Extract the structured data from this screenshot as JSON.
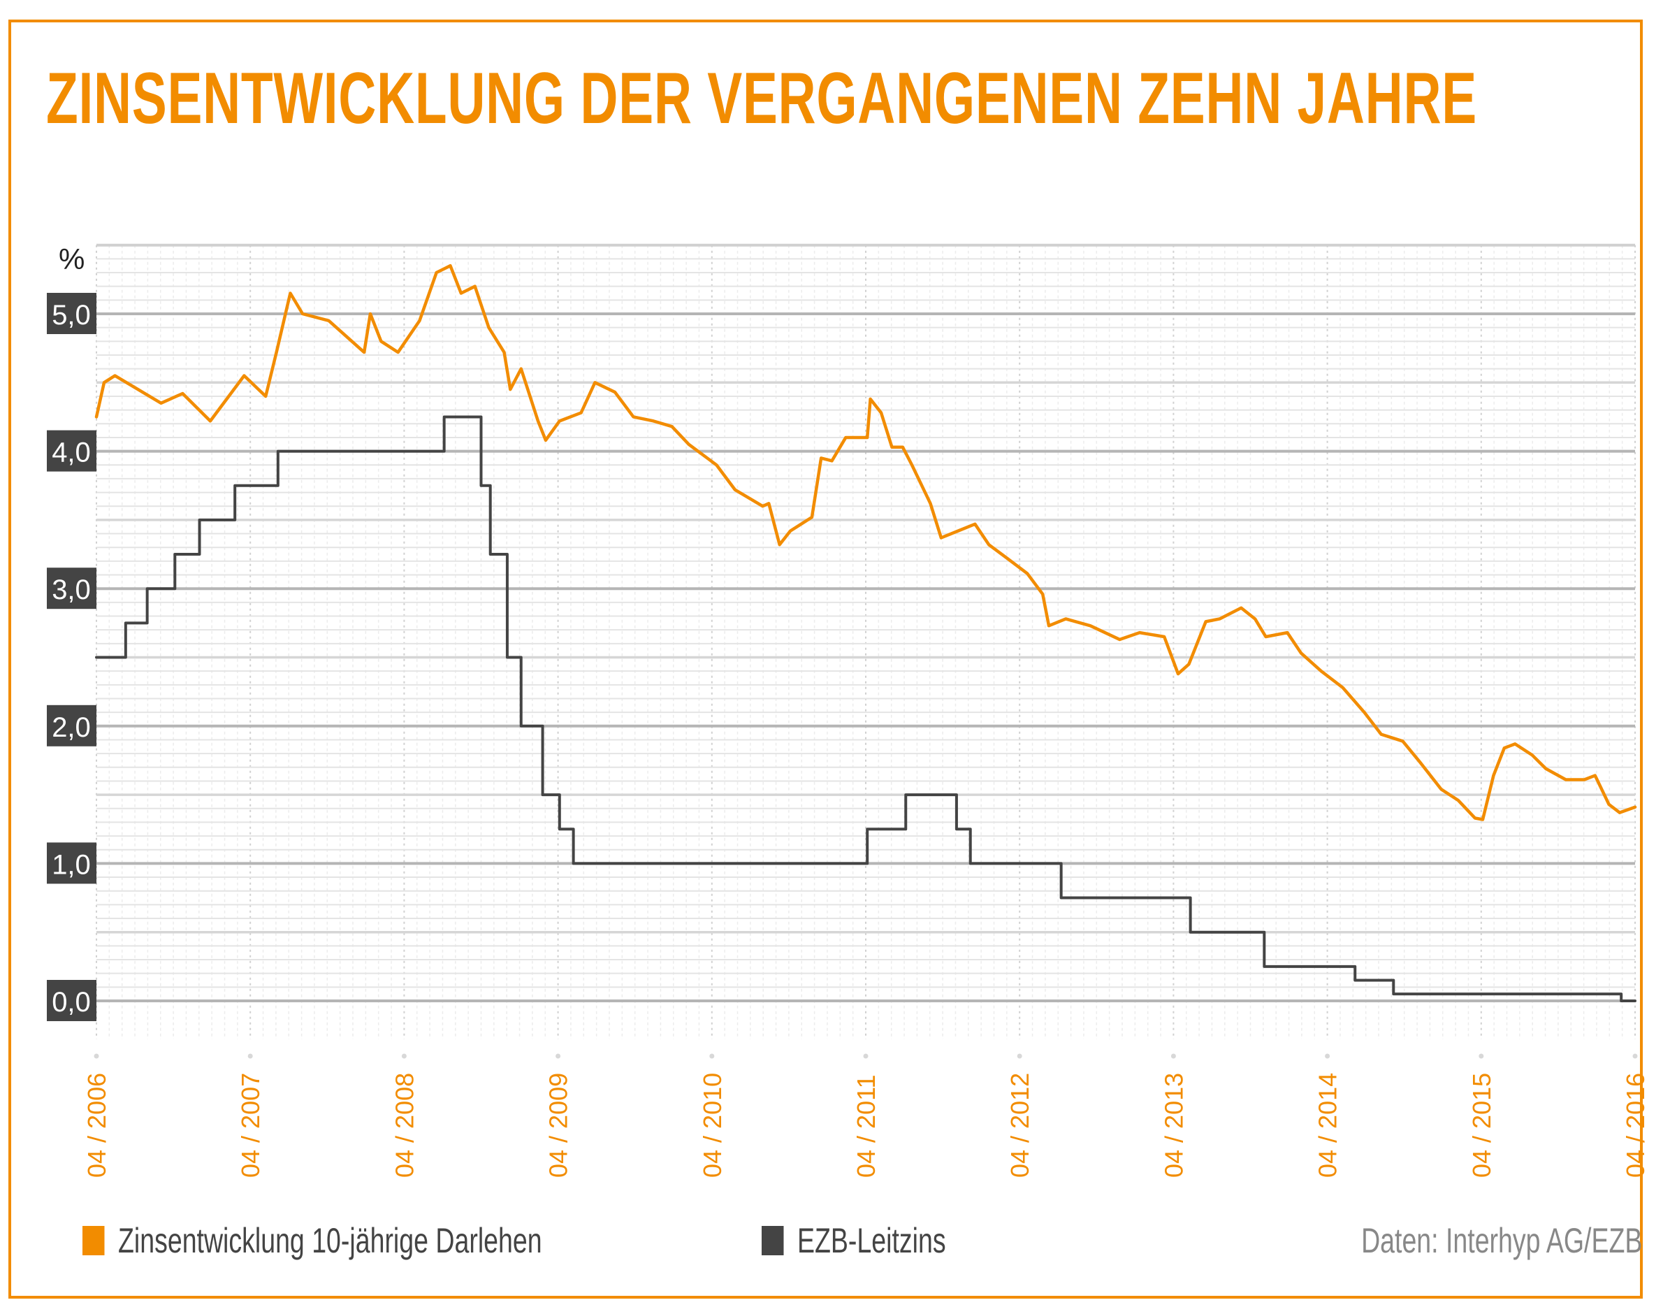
{
  "title": "ZINSENTWICKLUNG DER VERGANGENEN ZEHN JAHRE",
  "colors": {
    "accent": "#F28C00",
    "series_dark": "#444444",
    "grid_major": "#b5b5b5",
    "grid_minor": "#e2e2e2",
    "source_text": "#888888"
  },
  "legend": [
    {
      "label": "Zinsentwicklung 10-jährige Darlehen",
      "color": "#F28C00"
    },
    {
      "label": "EZB-Leitzins",
      "color": "#444444"
    }
  ],
  "source": "Daten: Interhyp AG/EZB",
  "chart_data": {
    "type": "line",
    "title": "ZINSENTWICKLUNG DER VERGANGENEN ZEHN JAHRE",
    "xlabel": "",
    "ylabel": "%",
    "x_unit": "years since 04/2006",
    "xlim": [
      0,
      10
    ],
    "ylim": [
      -0.2,
      5.5
    ],
    "yticks": [
      0,
      1,
      2,
      3,
      4,
      5
    ],
    "ytick_labels": [
      "0,0",
      "1,0",
      "2,0",
      "3,0",
      "4,0",
      "5,0"
    ],
    "xticks": [
      0,
      1,
      2,
      3,
      4,
      5,
      6,
      7,
      8,
      9,
      10
    ],
    "xtick_labels": [
      "04 / 2006",
      "04 / 2007",
      "04 / 2008",
      "04 / 2009",
      "04 / 2010",
      "04 / 2011",
      "04 / 2012",
      "04 / 2013",
      "04 / 2014",
      "04 / 2015",
      "04 / 2016"
    ],
    "grid": true,
    "legend_position": "bottom-left",
    "series": [
      {
        "name": "Zinsentwicklung 10-jährige Darlehen",
        "color": "#F28C00",
        "step": false,
        "points": [
          [
            0.0,
            4.25
          ],
          [
            0.05,
            4.5
          ],
          [
            0.12,
            4.55
          ],
          [
            0.42,
            4.35
          ],
          [
            0.56,
            4.42
          ],
          [
            0.74,
            4.22
          ],
          [
            0.96,
            4.55
          ],
          [
            1.1,
            4.4
          ],
          [
            1.17,
            4.72
          ],
          [
            1.26,
            5.15
          ],
          [
            1.34,
            5.0
          ],
          [
            1.51,
            4.95
          ],
          [
            1.74,
            4.72
          ],
          [
            1.78,
            5.0
          ],
          [
            1.85,
            4.8
          ],
          [
            1.96,
            4.72
          ],
          [
            2.1,
            4.95
          ],
          [
            2.21,
            5.3
          ],
          [
            2.3,
            5.35
          ],
          [
            2.37,
            5.15
          ],
          [
            2.46,
            5.2
          ],
          [
            2.55,
            4.9
          ],
          [
            2.65,
            4.72
          ],
          [
            2.69,
            4.45
          ],
          [
            2.76,
            4.6
          ],
          [
            2.87,
            4.22
          ],
          [
            2.92,
            4.08
          ],
          [
            3.01,
            4.22
          ],
          [
            3.15,
            4.28
          ],
          [
            3.24,
            4.5
          ],
          [
            3.37,
            4.43
          ],
          [
            3.49,
            4.25
          ],
          [
            3.62,
            4.22
          ],
          [
            3.74,
            4.18
          ],
          [
            3.85,
            4.05
          ],
          [
            4.03,
            3.9
          ],
          [
            4.15,
            3.72
          ],
          [
            4.33,
            3.6
          ],
          [
            4.37,
            3.62
          ],
          [
            4.44,
            3.32
          ],
          [
            4.51,
            3.42
          ],
          [
            4.65,
            3.52
          ],
          [
            4.71,
            3.95
          ],
          [
            4.78,
            3.93
          ],
          [
            4.87,
            4.1
          ],
          [
            5.01,
            4.1
          ],
          [
            5.03,
            4.38
          ],
          [
            5.1,
            4.28
          ],
          [
            5.17,
            4.03
          ],
          [
            5.24,
            4.03
          ],
          [
            5.3,
            3.9
          ],
          [
            5.42,
            3.62
          ],
          [
            5.49,
            3.37
          ],
          [
            5.6,
            3.42
          ],
          [
            5.71,
            3.47
          ],
          [
            5.8,
            3.32
          ],
          [
            5.92,
            3.22
          ],
          [
            6.05,
            3.11
          ],
          [
            6.15,
            2.96
          ],
          [
            6.19,
            2.73
          ],
          [
            6.3,
            2.78
          ],
          [
            6.46,
            2.73
          ],
          [
            6.65,
            2.63
          ],
          [
            6.78,
            2.68
          ],
          [
            6.94,
            2.65
          ],
          [
            7.03,
            2.38
          ],
          [
            7.1,
            2.45
          ],
          [
            7.21,
            2.76
          ],
          [
            7.3,
            2.78
          ],
          [
            7.44,
            2.86
          ],
          [
            7.53,
            2.78
          ],
          [
            7.6,
            2.65
          ],
          [
            7.74,
            2.68
          ],
          [
            7.83,
            2.53
          ],
          [
            7.96,
            2.4
          ],
          [
            8.1,
            2.28
          ],
          [
            8.24,
            2.1
          ],
          [
            8.35,
            1.94
          ],
          [
            8.49,
            1.89
          ],
          [
            8.6,
            1.74
          ],
          [
            8.74,
            1.54
          ],
          [
            8.85,
            1.46
          ],
          [
            8.96,
            1.33
          ],
          [
            9.01,
            1.32
          ],
          [
            9.08,
            1.64
          ],
          [
            9.15,
            1.84
          ],
          [
            9.22,
            1.87
          ],
          [
            9.33,
            1.79
          ],
          [
            9.42,
            1.69
          ],
          [
            9.55,
            1.61
          ],
          [
            9.67,
            1.61
          ],
          [
            9.74,
            1.64
          ],
          [
            9.83,
            1.43
          ],
          [
            9.9,
            1.37
          ],
          [
            10.0,
            1.41
          ]
        ]
      },
      {
        "name": "EZB-Leitzins",
        "color": "#444444",
        "step": true,
        "points": [
          [
            0.0,
            2.5
          ],
          [
            0.19,
            2.75
          ],
          [
            0.33,
            3.0
          ],
          [
            0.51,
            3.25
          ],
          [
            0.67,
            3.5
          ],
          [
            0.9,
            3.75
          ],
          [
            1.18,
            4.0
          ],
          [
            2.26,
            4.25
          ],
          [
            2.5,
            3.75
          ],
          [
            2.56,
            3.25
          ],
          [
            2.67,
            2.5
          ],
          [
            2.76,
            2.0
          ],
          [
            2.9,
            1.5
          ],
          [
            3.01,
            1.25
          ],
          [
            3.1,
            1.0
          ],
          [
            5.01,
            1.25
          ],
          [
            5.26,
            1.5
          ],
          [
            5.59,
            1.25
          ],
          [
            5.68,
            1.0
          ],
          [
            6.27,
            0.75
          ],
          [
            7.11,
            0.5
          ],
          [
            7.59,
            0.25
          ],
          [
            8.18,
            0.15
          ],
          [
            8.43,
            0.05
          ],
          [
            9.91,
            0.0
          ],
          [
            10.0,
            0.0
          ]
        ]
      }
    ]
  }
}
